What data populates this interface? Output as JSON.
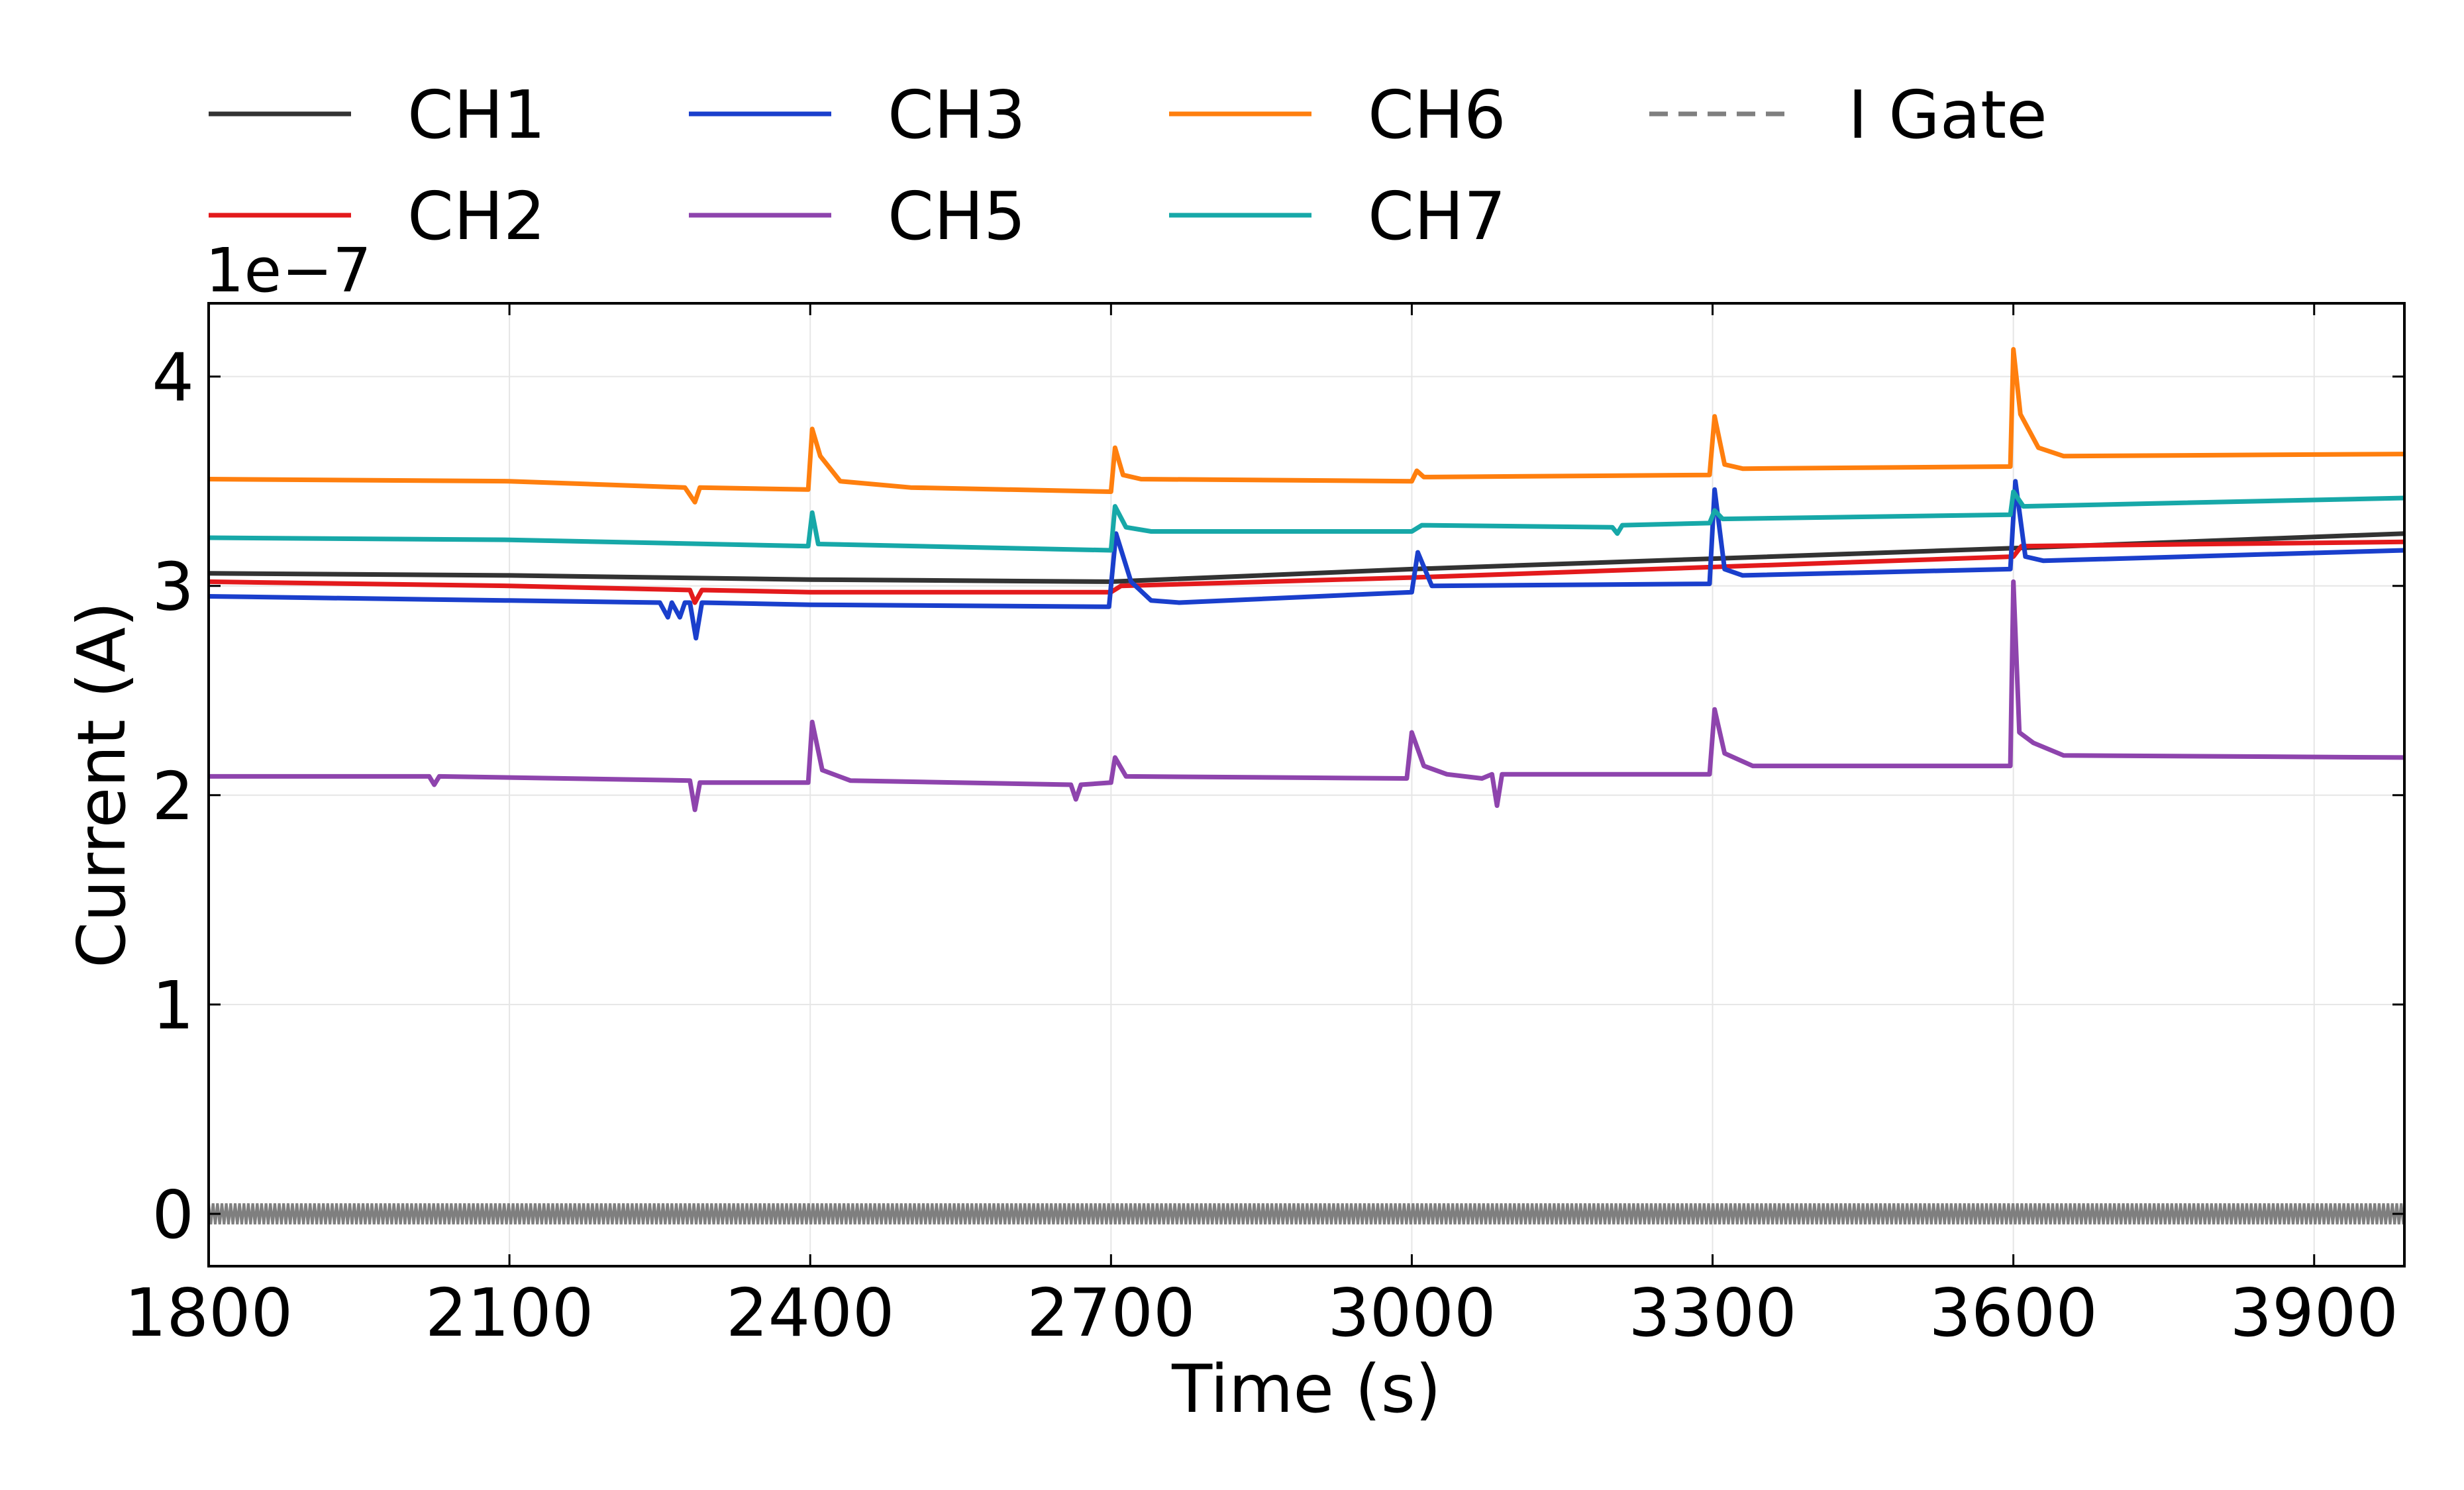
{
  "chart_data": {
    "type": "line",
    "title": "",
    "xlabel": "Time (s)",
    "ylabel": "Current (A)",
    "y_offset_label": "1e−7",
    "y_scale_exponent": -7,
    "xlim": [
      1800,
      3990
    ],
    "ylim": [
      -0.25,
      4.35
    ],
    "x_ticks": [
      1800,
      2100,
      2400,
      2700,
      3000,
      3300,
      3600,
      3900
    ],
    "x_tick_labels": [
      "1800",
      "2100",
      "2400",
      "2700",
      "3000",
      "3300",
      "3600",
      "3900"
    ],
    "y_ticks": [
      0,
      1,
      2,
      3,
      4
    ],
    "y_tick_labels": [
      "0",
      "1",
      "2",
      "3",
      "4"
    ],
    "grid": true,
    "legend_placement": "top, outside plot, 4 columns",
    "series": [
      {
        "name": "CH1",
        "color": "#333333",
        "style": "solid",
        "points": [
          [
            1800,
            3.06
          ],
          [
            2100,
            3.05
          ],
          [
            2400,
            3.03
          ],
          [
            2700,
            3.02
          ],
          [
            3000,
            3.08
          ],
          [
            3300,
            3.13
          ],
          [
            3600,
            3.18
          ],
          [
            3990,
            3.25
          ]
        ]
      },
      {
        "name": "CH2",
        "color": "#e31a1c",
        "style": "solid",
        "points": [
          [
            1800,
            3.02
          ],
          [
            2100,
            3.0
          ],
          [
            2280,
            2.98
          ],
          [
            2285,
            2.92
          ],
          [
            2292,
            2.98
          ],
          [
            2400,
            2.97
          ],
          [
            2700,
            2.97
          ],
          [
            2710,
            3.0
          ],
          [
            3000,
            3.04
          ],
          [
            3300,
            3.09
          ],
          [
            3600,
            3.14
          ],
          [
            3608,
            3.19
          ],
          [
            3990,
            3.21
          ]
        ]
      },
      {
        "name": "CH3",
        "color": "#1a3fcc",
        "style": "solid",
        "points": [
          [
            1800,
            2.95
          ],
          [
            2100,
            2.93
          ],
          [
            2250,
            2.92
          ],
          [
            2258,
            2.85
          ],
          [
            2262,
            2.92
          ],
          [
            2270,
            2.85
          ],
          [
            2275,
            2.92
          ],
          [
            2280,
            2.92
          ],
          [
            2286,
            2.75
          ],
          [
            2292,
            2.92
          ],
          [
            2400,
            2.91
          ],
          [
            2698,
            2.9
          ],
          [
            2705,
            3.25
          ],
          [
            2720,
            3.02
          ],
          [
            2740,
            2.93
          ],
          [
            2768,
            2.92
          ],
          [
            3000,
            2.97
          ],
          [
            3006,
            3.16
          ],
          [
            3020,
            3.0
          ],
          [
            3297,
            3.01
          ],
          [
            3302,
            3.46
          ],
          [
            3312,
            3.08
          ],
          [
            3330,
            3.05
          ],
          [
            3597,
            3.08
          ],
          [
            3602,
            3.5
          ],
          [
            3612,
            3.14
          ],
          [
            3630,
            3.12
          ],
          [
            3990,
            3.17
          ]
        ]
      },
      {
        "name": "CH5",
        "color": "#8e44ad",
        "style": "solid",
        "points": [
          [
            1800,
            2.09
          ],
          [
            2020,
            2.09
          ],
          [
            2025,
            2.05
          ],
          [
            2030,
            2.09
          ],
          [
            2280,
            2.07
          ],
          [
            2285,
            1.93
          ],
          [
            2290,
            2.06
          ],
          [
            2398,
            2.06
          ],
          [
            2402,
            2.35
          ],
          [
            2412,
            2.12
          ],
          [
            2440,
            2.07
          ],
          [
            2660,
            2.05
          ],
          [
            2665,
            1.98
          ],
          [
            2670,
            2.05
          ],
          [
            2700,
            2.06
          ],
          [
            2704,
            2.18
          ],
          [
            2715,
            2.09
          ],
          [
            2995,
            2.08
          ],
          [
            3000,
            2.3
          ],
          [
            3012,
            2.14
          ],
          [
            3035,
            2.1
          ],
          [
            3070,
            2.08
          ],
          [
            3080,
            2.1
          ],
          [
            3085,
            1.95
          ],
          [
            3090,
            2.1
          ],
          [
            3297,
            2.1
          ],
          [
            3302,
            2.41
          ],
          [
            3312,
            2.2
          ],
          [
            3340,
            2.14
          ],
          [
            3597,
            2.14
          ],
          [
            3600,
            3.02
          ],
          [
            3606,
            2.3
          ],
          [
            3620,
            2.25
          ],
          [
            3650,
            2.19
          ],
          [
            3990,
            2.18
          ]
        ]
      },
      {
        "name": "CH6",
        "color": "#ff7f0e",
        "style": "solid",
        "points": [
          [
            1800,
            3.51
          ],
          [
            2100,
            3.5
          ],
          [
            2275,
            3.47
          ],
          [
            2285,
            3.4
          ],
          [
            2290,
            3.47
          ],
          [
            2398,
            3.46
          ],
          [
            2402,
            3.75
          ],
          [
            2410,
            3.62
          ],
          [
            2430,
            3.5
          ],
          [
            2500,
            3.47
          ],
          [
            2700,
            3.45
          ],
          [
            2704,
            3.66
          ],
          [
            2712,
            3.53
          ],
          [
            2730,
            3.51
          ],
          [
            3000,
            3.5
          ],
          [
            3005,
            3.55
          ],
          [
            3012,
            3.52
          ],
          [
            3297,
            3.53
          ],
          [
            3302,
            3.81
          ],
          [
            3312,
            3.58
          ],
          [
            3330,
            3.56
          ],
          [
            3597,
            3.57
          ],
          [
            3600,
            4.13
          ],
          [
            3607,
            3.82
          ],
          [
            3625,
            3.66
          ],
          [
            3650,
            3.62
          ],
          [
            3990,
            3.63
          ]
        ]
      },
      {
        "name": "CH7",
        "color": "#17a8a8",
        "style": "solid",
        "points": [
          [
            1800,
            3.23
          ],
          [
            2100,
            3.22
          ],
          [
            2398,
            3.19
          ],
          [
            2402,
            3.35
          ],
          [
            2408,
            3.2
          ],
          [
            2700,
            3.17
          ],
          [
            2704,
            3.38
          ],
          [
            2715,
            3.28
          ],
          [
            2740,
            3.26
          ],
          [
            3000,
            3.26
          ],
          [
            3010,
            3.29
          ],
          [
            3200,
            3.28
          ],
          [
            3205,
            3.25
          ],
          [
            3210,
            3.29
          ],
          [
            3297,
            3.3
          ],
          [
            3302,
            3.36
          ],
          [
            3310,
            3.32
          ],
          [
            3597,
            3.34
          ],
          [
            3600,
            3.45
          ],
          [
            3610,
            3.38
          ],
          [
            3990,
            3.42
          ]
        ]
      },
      {
        "name": "I Gate",
        "color": "#7f7f7f",
        "style": "dashed",
        "points": [
          [
            1800,
            0.0
          ],
          [
            3990,
            0.0
          ]
        ]
      }
    ]
  }
}
